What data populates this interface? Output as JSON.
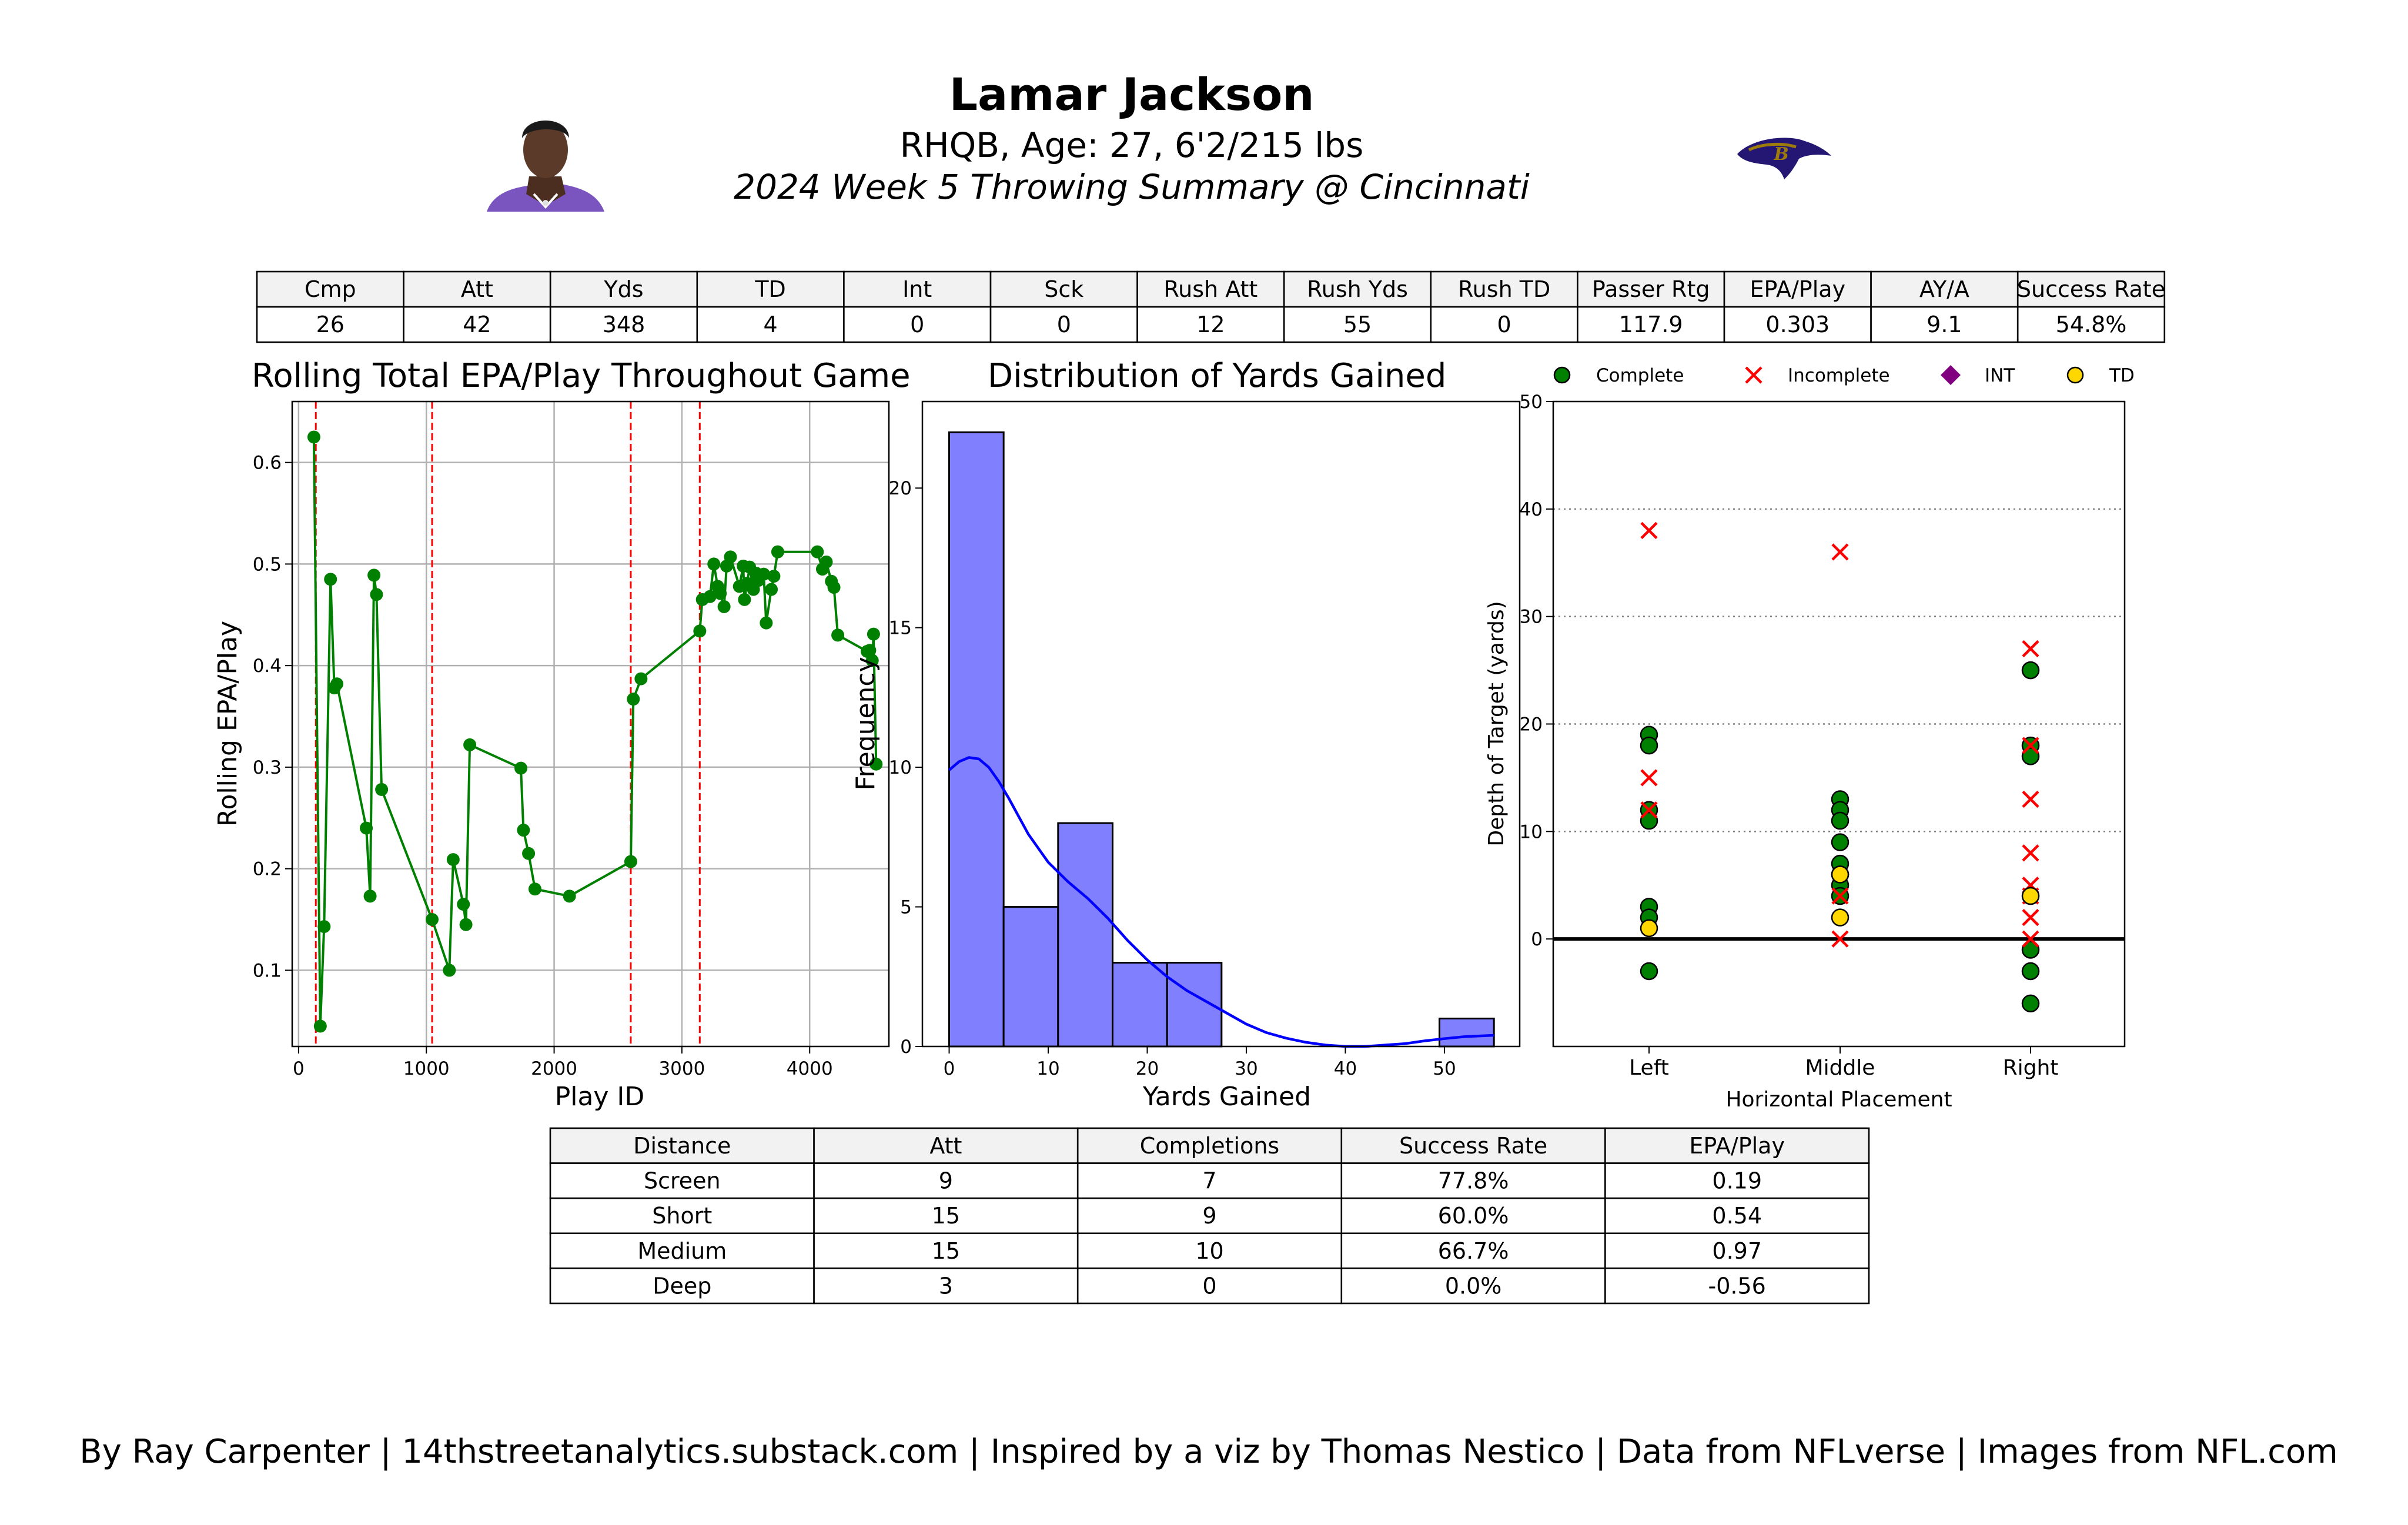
{
  "header": {
    "player_name": "Lamar Jackson",
    "player_info": "RHQB, Age: 27, 6'2/215 lbs",
    "game_title": "2024 Week 5 Throwing Summary @ Cincinnati",
    "headshot_icon": "player-headshot-icon",
    "team_logo_icon": "ravens-logo-icon"
  },
  "stats_table": {
    "headers": [
      "Cmp",
      "Att",
      "Yds",
      "TD",
      "Int",
      "Sck",
      "Rush Att",
      "Rush Yds",
      "Rush TD",
      "Passer Rtg",
      "EPA/Play",
      "AY/A",
      "Success Rate"
    ],
    "values": [
      "26",
      "42",
      "348",
      "4",
      "0",
      "0",
      "12",
      "55",
      "0",
      "117.9",
      "0.303",
      "9.1",
      "54.8%"
    ]
  },
  "distance_table": {
    "headers": [
      "Distance",
      "Att",
      "Completions",
      "Success Rate",
      "EPA/Play"
    ],
    "rows": [
      [
        "Screen",
        "9",
        "7",
        "77.8%",
        "0.19"
      ],
      [
        "Short",
        "15",
        "9",
        "60.0%",
        "0.54"
      ],
      [
        "Medium",
        "15",
        "10",
        "66.7%",
        "0.97"
      ],
      [
        "Deep",
        "3",
        "0",
        "0.0%",
        "-0.56"
      ]
    ]
  },
  "footer": {
    "credits": "By Ray Carpenter | 14thstreetanalytics.substack.com | Inspired by a viz by Thomas Nestico | Data from NFLverse | Images from NFL.com"
  },
  "colors": {
    "line": "#008000",
    "drive_marker": "#ff0000",
    "hist_fill": "#8080ff",
    "kde": "#0000ff",
    "complete": "#008000",
    "incomplete": "#ff0000",
    "int": "#800080",
    "td": "#ffd700"
  },
  "chart_data": [
    {
      "type": "line",
      "title": "Rolling Total EPA/Play Throughout Game",
      "xlabel": "Play ID",
      "ylabel": "Rolling EPA/Play",
      "xlim": [
        -50,
        4620
      ],
      "ylim": [
        0.025,
        0.66
      ],
      "xticks": [
        0,
        1000,
        2000,
        3000,
        4000
      ],
      "yticks": [
        0.1,
        0.2,
        0.3,
        0.4,
        0.5,
        0.6
      ],
      "grid": true,
      "vertical_markers": [
        135,
        1045,
        2600,
        3140
      ],
      "points": [
        [
          120,
          0.625
        ],
        [
          170,
          0.045
        ],
        [
          200,
          0.143
        ],
        [
          250,
          0.485
        ],
        [
          280,
          0.378
        ],
        [
          300,
          0.382
        ],
        [
          530,
          0.24
        ],
        [
          560,
          0.173
        ],
        [
          590,
          0.489
        ],
        [
          610,
          0.47
        ],
        [
          650,
          0.278
        ],
        [
          1045,
          0.15
        ],
        [
          1180,
          0.1
        ],
        [
          1210,
          0.209
        ],
        [
          1290,
          0.165
        ],
        [
          1310,
          0.145
        ],
        [
          1340,
          0.322
        ],
        [
          1740,
          0.299
        ],
        [
          1760,
          0.238
        ],
        [
          1800,
          0.215
        ],
        [
          1850,
          0.18
        ],
        [
          2120,
          0.173
        ],
        [
          2600,
          0.207
        ],
        [
          2620,
          0.367
        ],
        [
          2680,
          0.387
        ],
        [
          3140,
          0.434
        ],
        [
          3160,
          0.465
        ],
        [
          3220,
          0.468
        ],
        [
          3250,
          0.5
        ],
        [
          3280,
          0.478
        ],
        [
          3300,
          0.471
        ],
        [
          3330,
          0.458
        ],
        [
          3350,
          0.498
        ],
        [
          3380,
          0.507
        ],
        [
          3450,
          0.478
        ],
        [
          3480,
          0.498
        ],
        [
          3490,
          0.465
        ],
        [
          3510,
          0.481
        ],
        [
          3530,
          0.497
        ],
        [
          3560,
          0.475
        ],
        [
          3580,
          0.491
        ],
        [
          3600,
          0.484
        ],
        [
          3640,
          0.49
        ],
        [
          3660,
          0.442
        ],
        [
          3700,
          0.475
        ],
        [
          3720,
          0.488
        ],
        [
          3750,
          0.512
        ],
        [
          4060,
          0.512
        ],
        [
          4100,
          0.495
        ],
        [
          4130,
          0.502
        ],
        [
          4170,
          0.483
        ],
        [
          4190,
          0.477
        ],
        [
          4220,
          0.43
        ],
        [
          4450,
          0.414
        ],
        [
          4470,
          0.415
        ],
        [
          4490,
          0.405
        ],
        [
          4500,
          0.431
        ],
        [
          4520,
          0.303
        ]
      ]
    },
    {
      "type": "bar",
      "title": "Distribution of Yards Gained",
      "xlabel": "Yards Gained",
      "ylabel": "Frequency",
      "xlim": [
        -2.7,
        57.6
      ],
      "ylim": [
        0,
        23.1
      ],
      "xticks": [
        0,
        10,
        20,
        30,
        40,
        50
      ],
      "yticks": [
        0,
        5,
        10,
        15,
        20
      ],
      "bin_edges": [
        0,
        5.5,
        11,
        16.5,
        22,
        27.5,
        33,
        38.5,
        44,
        49.5,
        55
      ],
      "values": [
        22,
        5,
        8,
        3,
        3,
        0,
        0,
        0,
        0,
        1
      ],
      "kde": [
        [
          0,
          9.9
        ],
        [
          1,
          10.2
        ],
        [
          2,
          10.35
        ],
        [
          3,
          10.3
        ],
        [
          4,
          10.0
        ],
        [
          5,
          9.5
        ],
        [
          6,
          8.9
        ],
        [
          8,
          7.6
        ],
        [
          10,
          6.6
        ],
        [
          12,
          5.9
        ],
        [
          14,
          5.3
        ],
        [
          16,
          4.6
        ],
        [
          18,
          3.8
        ],
        [
          20,
          3.1
        ],
        [
          22,
          2.5
        ],
        [
          24,
          2.0
        ],
        [
          26,
          1.6
        ],
        [
          28,
          1.2
        ],
        [
          30,
          0.8
        ],
        [
          32,
          0.5
        ],
        [
          34,
          0.3
        ],
        [
          36,
          0.15
        ],
        [
          38,
          0.05
        ],
        [
          40,
          0.0
        ],
        [
          42,
          0.0
        ],
        [
          44,
          0.05
        ],
        [
          46,
          0.1
        ],
        [
          48,
          0.2
        ],
        [
          50,
          0.28
        ],
        [
          52,
          0.35
        ],
        [
          55,
          0.4
        ]
      ]
    },
    {
      "type": "scatter",
      "title": "",
      "xlabel": "Horizontal Placement",
      "ylabel": "Depth of Target (yards)",
      "categories": [
        "Left",
        "Middle",
        "Right"
      ],
      "ylim": [
        -10,
        50
      ],
      "yticks": [
        0,
        10,
        20,
        30,
        40,
        50
      ],
      "legend": {
        "placement": "top",
        "entries": [
          {
            "label": "Complete",
            "marker": "circle"
          },
          {
            "label": "Incomplete",
            "marker": "x"
          },
          {
            "label": "INT",
            "marker": "diamond"
          },
          {
            "label": "TD",
            "marker": "circle"
          }
        ]
      },
      "series": [
        {
          "name": "Complete",
          "points": [
            [
              "Left",
              19
            ],
            [
              "Left",
              18
            ],
            [
              "Left",
              12
            ],
            [
              "Left",
              11
            ],
            [
              "Left",
              3
            ],
            [
              "Left",
              2
            ],
            [
              "Left",
              -3
            ],
            [
              "Middle",
              13
            ],
            [
              "Middle",
              12
            ],
            [
              "Middle",
              11
            ],
            [
              "Middle",
              9
            ],
            [
              "Middle",
              7
            ],
            [
              "Middle",
              6
            ],
            [
              "Middle",
              5
            ],
            [
              "Middle",
              4
            ],
            [
              "Right",
              25
            ],
            [
              "Right",
              18
            ],
            [
              "Right",
              17
            ],
            [
              "Right",
              -1
            ],
            [
              "Right",
              -3
            ],
            [
              "Right",
              -6
            ]
          ]
        },
        {
          "name": "Incomplete",
          "points": [
            [
              "Left",
              38
            ],
            [
              "Left",
              15
            ],
            [
              "Left",
              12
            ],
            [
              "Middle",
              36
            ],
            [
              "Middle",
              4
            ],
            [
              "Middle",
              0
            ],
            [
              "Right",
              27
            ],
            [
              "Right",
              18
            ],
            [
              "Right",
              13
            ],
            [
              "Right",
              8
            ],
            [
              "Right",
              5
            ],
            [
              "Right",
              2
            ],
            [
              "Right",
              0
            ],
            [
              "Right",
              4
            ]
          ]
        },
        {
          "name": "INT",
          "points": []
        },
        {
          "name": "TD",
          "points": [
            [
              "Left",
              1
            ],
            [
              "Middle",
              6
            ],
            [
              "Middle",
              2
            ],
            [
              "Right",
              4
            ]
          ]
        }
      ]
    }
  ]
}
